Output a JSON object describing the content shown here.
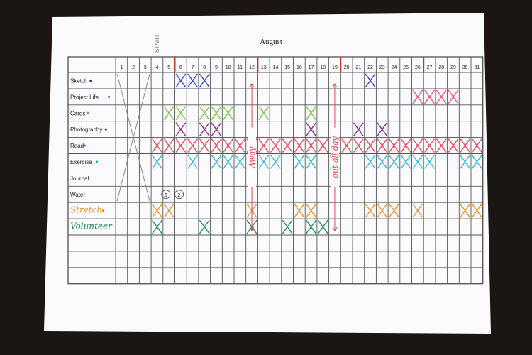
{
  "title": "August",
  "start_label": "START",
  "days": [
    "1",
    "2",
    "3",
    "4",
    "5",
    "6",
    "7",
    "8",
    "9",
    "10",
    "11",
    "12",
    "13",
    "14",
    "15",
    "16",
    "17",
    "18",
    "19",
    "20",
    "21",
    "22",
    "23",
    "24",
    "25",
    "26",
    "27",
    "28",
    "29",
    "30",
    "31"
  ],
  "rows": [
    {
      "label": "Sketch",
      "dot": "#1f3fb0",
      "color": "#2a3fc8",
      "marked": [
        6,
        7,
        8,
        22
      ]
    },
    {
      "label": "Project Life",
      "dot": "#e0406a",
      "color": "#ea5a86",
      "marked": [
        26,
        27,
        28,
        29
      ]
    },
    {
      "label": "Cards",
      "dot": "#5ab33a",
      "color": "#7ac84a",
      "marked": [
        5,
        6,
        8,
        9,
        10,
        13,
        17
      ]
    },
    {
      "label": "Photography",
      "dot": "#7a2b7a",
      "color": "#8a2a8a",
      "marked": [
        6,
        8,
        9,
        17,
        21,
        23
      ]
    },
    {
      "label": "Read",
      "dot": "#d8304a",
      "color": "#e24a5a",
      "marked": [
        4,
        5,
        6,
        7,
        8,
        9,
        10,
        11,
        12,
        13,
        14,
        15,
        16,
        17,
        18,
        20,
        21,
        22,
        23,
        24,
        25,
        26,
        27,
        28,
        29,
        30,
        31
      ]
    },
    {
      "label": "Exercise",
      "dot": "#2aa6c8",
      "color": "#3ab8d2",
      "marked": [
        4,
        7,
        9,
        10,
        11,
        13,
        14,
        16,
        17,
        19,
        22,
        23,
        24,
        25,
        26,
        27,
        30,
        31
      ]
    },
    {
      "label": "Journal",
      "dot": "",
      "color": "#333333",
      "marked": []
    },
    {
      "label": "Water",
      "dot": "",
      "color": "#333333",
      "marked": []
    },
    {
      "label": "Stretch",
      "dot": "#f08a2a",
      "color": "#f0922a",
      "marked": [
        4,
        5,
        12,
        16,
        17,
        22,
        23,
        24,
        26,
        30,
        31
      ]
    },
    {
      "label": "Volunteer",
      "dot": "",
      "color": "#1e8a5a",
      "marked": [
        4,
        8,
        12,
        15,
        17,
        18
      ]
    }
  ],
  "water_counts": [
    "5",
    "2"
  ],
  "away_note": "Away",
  "out_note": "out all day"
}
